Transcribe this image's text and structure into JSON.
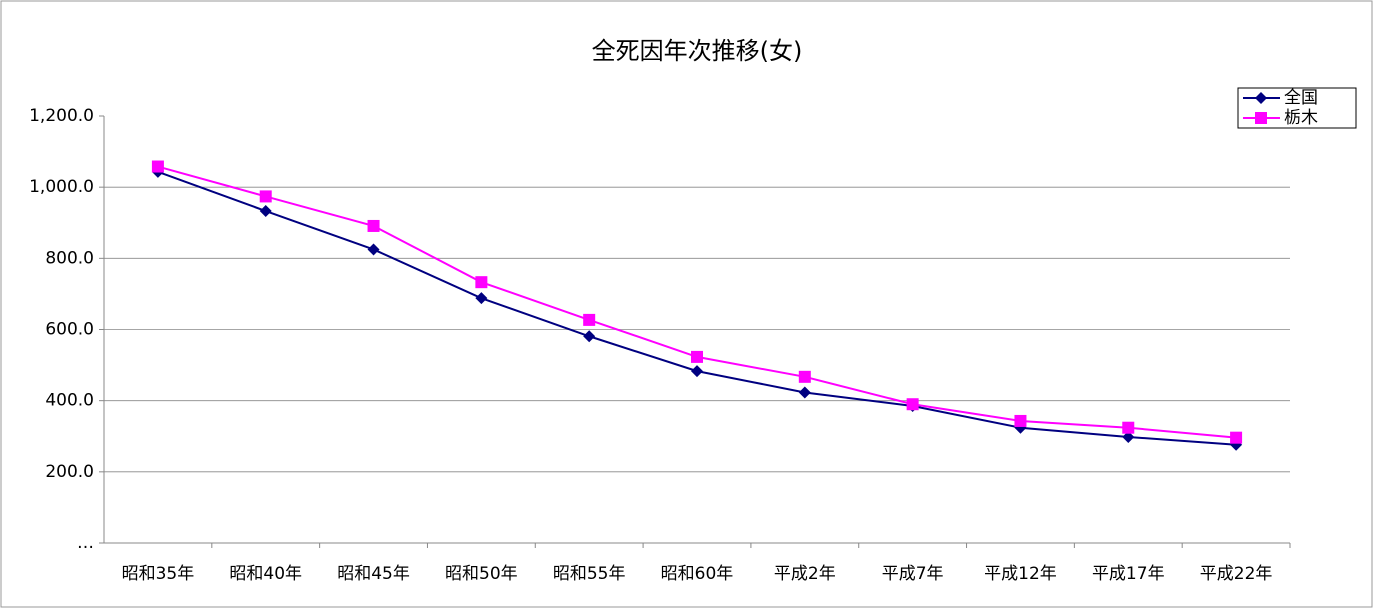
{
  "chart_data": {
    "type": "line",
    "title": "全死因年次推移(女)",
    "categories": [
      "昭和35年",
      "昭和40年",
      "昭和45年",
      "昭和50年",
      "昭和55年",
      "昭和60年",
      "平成2年",
      "平成7年",
      "平成12年",
      "平成17年",
      "平成22年"
    ],
    "series": [
      {
        "name": "全国",
        "color": "#000080",
        "marker": "diamond",
        "values": [
          1043,
          933,
          825,
          688,
          581,
          483,
          423,
          385,
          324,
          298,
          276
        ]
      },
      {
        "name": "栃木",
        "color": "#ff00ff",
        "marker": "square",
        "values": [
          1058,
          974,
          891,
          733,
          627,
          523,
          467,
          390,
          343,
          324,
          296
        ]
      }
    ],
    "ylim": [
      0,
      1200
    ],
    "yticks": [
      {
        "value": 0,
        "label": "…"
      },
      {
        "value": 200,
        "label": "200.0"
      },
      {
        "value": 400,
        "label": "400.0"
      },
      {
        "value": 600,
        "label": "600.0"
      },
      {
        "value": 800,
        "label": "800.0"
      },
      {
        "value": 1000,
        "label": "1,000.0"
      },
      {
        "value": 1200,
        "label": "1,200.0"
      }
    ],
    "grid": true,
    "legend": "top-right"
  }
}
